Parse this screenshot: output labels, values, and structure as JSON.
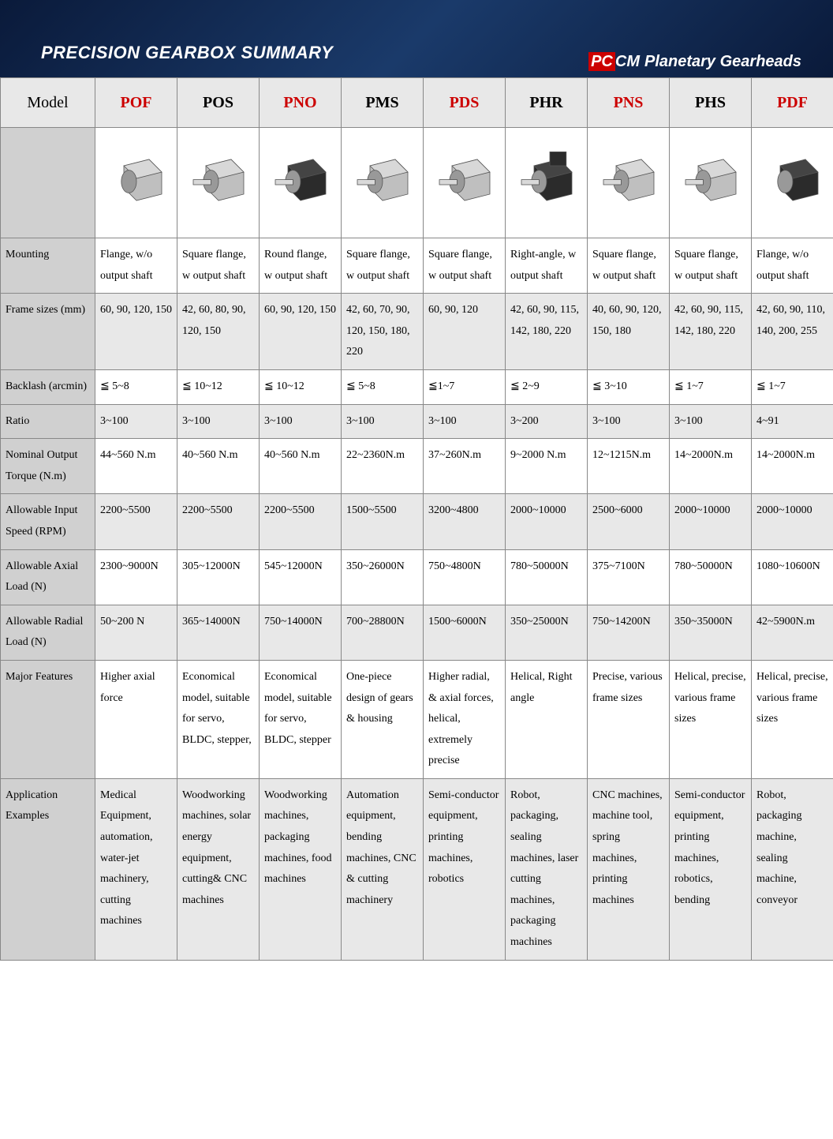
{
  "header": {
    "title": "PRECISION GEARBOX SUMMARY",
    "brand_pc": "PC",
    "brand_cm": "CM",
    "brand_tag": "Planetary Gearheads",
    "bg_gradient_start": "#0a1a3a",
    "bg_gradient_mid": "#1a3a6a",
    "title_color": "#ffffff",
    "brand_red": "#cc0000"
  },
  "table": {
    "header_bg": "#e8e8e8",
    "rowlabel_bg": "#d0d0d0",
    "data_bg": "#ffffff",
    "data_alt_bg": "#e8e8e8",
    "border_color": "#888888",
    "red_text": "#cc0000",
    "black_text": "#000000",
    "font_family": "Times New Roman",
    "font_size_header": 20,
    "font_size_body": 14,
    "model_label": "Model",
    "columns": [
      {
        "code": "POF",
        "color": "red"
      },
      {
        "code": "POS",
        "color": "black"
      },
      {
        "code": "PNO",
        "color": "red"
      },
      {
        "code": "PMS",
        "color": "black"
      },
      {
        "code": "PDS",
        "color": "red"
      },
      {
        "code": "PHR",
        "color": "black"
      },
      {
        "code": "PNS",
        "color": "red"
      },
      {
        "code": "PHS",
        "color": "black"
      },
      {
        "code": "PDF",
        "color": "red"
      }
    ],
    "rows": [
      {
        "label": "Mounting",
        "alt": false,
        "cells": [
          "Flange, w/o output shaft",
          "Square flange, w output shaft",
          "Round flange, w output shaft",
          "Square flange, w output shaft",
          "Square flange, w output shaft",
          "Right-angle, w output shaft",
          "Square flange, w output shaft",
          "Square flange, w output shaft",
          "Flange, w/o output shaft"
        ]
      },
      {
        "label": "Frame sizes (mm)",
        "alt": true,
        "cells": [
          "60, 90, 120, 150",
          "42, 60, 80, 90, 120, 150",
          "60, 90, 120, 150",
          "42, 60, 70, 90, 120, 150, 180, 220",
          "60, 90, 120",
          "42, 60, 90, 115, 142, 180, 220",
          "40, 60, 90, 120, 150, 180",
          "42, 60, 90, 115, 142, 180, 220",
          "42, 60, 90, 110, 140, 200, 255"
        ]
      },
      {
        "label": "Backlash (arcmin)",
        "alt": false,
        "cells": [
          "≦ 5~8",
          "≦ 10~12",
          "≦ 10~12",
          "≦ 5~8",
          "≦1~7",
          "≦ 2~9",
          "≦ 3~10",
          "≦ 1~7",
          "≦ 1~7"
        ]
      },
      {
        "label": "Ratio",
        "alt": true,
        "cells": [
          "3~100",
          "3~100",
          "3~100",
          "3~100",
          "3~100",
          "3~200",
          "3~100",
          "3~100",
          "4~91"
        ]
      },
      {
        "label": "Nominal Output Torque (N.m)",
        "alt": false,
        "cells": [
          "44~560 N.m",
          "40~560 N.m",
          "40~560 N.m",
          "22~2360N.m",
          "37~260N.m",
          "9~2000 N.m",
          "12~1215N.m",
          "14~2000N.m",
          "14~2000N.m"
        ]
      },
      {
        "label": "Allowable Input Speed (RPM)",
        "alt": true,
        "cells": [
          "2200~5500",
          "2200~5500",
          "2200~5500",
          "1500~5500",
          "3200~4800",
          "2000~10000",
          "2500~6000",
          "2000~10000",
          "2000~10000"
        ]
      },
      {
        "label": "Allowable Axial Load (N)",
        "alt": false,
        "cells": [
          "2300~9000N",
          "305~12000N",
          "545~12000N",
          "350~26000N",
          "750~4800N",
          "780~50000N",
          "375~7100N",
          "780~50000N",
          "1080~10600N"
        ]
      },
      {
        "label": "Allowable Radial Load (N)",
        "alt": true,
        "cells": [
          "50~200 N",
          "365~14000N",
          "750~14000N",
          "700~28800N",
          "1500~6000N",
          "350~25000N",
          "750~14200N",
          "350~35000N",
          "42~5900N.m"
        ]
      },
      {
        "label": "Major Features",
        "alt": false,
        "cells": [
          "Higher axial force",
          "Economical model, suitable for servo, BLDC, stepper,",
          "Economical model, suitable for servo, BLDC, stepper",
          "One-piece design of gears & housing",
          "Higher radial, & axial forces, helical, extremely precise",
          "Helical, Right angle",
          "Precise, various frame sizes",
          "Helical, precise, various frame sizes",
          "Helical, precise, various frame sizes"
        ]
      },
      {
        "label": "Application Examples",
        "alt": true,
        "cells": [
          "Medical Equipment, automation, water-jet machinery, cutting machines",
          "Woodworking machines, solar energy equipment, cutting& CNC machines",
          "Woodworking machines, packaging machines, food machines",
          "Automation equipment, bending machines, CNC & cutting machinery",
          "Semi-conductor equipment, printing machines, robotics",
          "Robot, packaging, sealing machines, laser cutting machines, packaging machines",
          "CNC machines, machine tool, spring machines, printing machines",
          "Semi-conductor equipment, printing machines, robotics, bending",
          "Robot, packaging machine, sealing machine, conveyor"
        ]
      }
    ],
    "image_icons": {
      "body_fill": "#bfbfbf",
      "body_stroke": "#555555",
      "shaft_fill": "#d9d9d9",
      "dark_fill": "#2b2b2b"
    }
  }
}
